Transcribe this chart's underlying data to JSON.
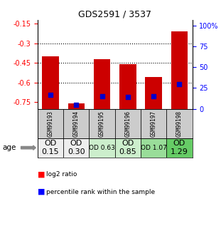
{
  "title": "GDS2591 / 3537",
  "samples": [
    "GSM99193",
    "GSM99194",
    "GSM99195",
    "GSM99196",
    "GSM99197",
    "GSM99198"
  ],
  "log2_ratios": [
    -0.4,
    -0.76,
    -0.42,
    -0.46,
    -0.56,
    -0.21
  ],
  "percentile_ranks": [
    17,
    5,
    15,
    14,
    15,
    30
  ],
  "od_labels": [
    "OD\n0.15",
    "OD\n0.30",
    "OD 0.63",
    "OD\n0.85",
    "OD 1.07",
    "OD\n1.29"
  ],
  "od_bg_colors": [
    "#eeeeee",
    "#eeeeee",
    "#cceecc",
    "#cceecc",
    "#99dd99",
    "#66cc66"
  ],
  "od_font_sizes": [
    8,
    8,
    6.5,
    8,
    6.5,
    8
  ],
  "ylim_left": [
    -0.8,
    -0.12
  ],
  "ylim_right": [
    0,
    107
  ],
  "yticks_left": [
    -0.75,
    -0.6,
    -0.45,
    -0.3,
    -0.15
  ],
  "yticks_right": [
    0,
    25,
    50,
    75,
    100
  ],
  "bar_color": "#cc0000",
  "blue_color": "#0000cc",
  "bar_width": 0.65,
  "sample_bg_color": "#cccccc",
  "grid_color": "#000000"
}
